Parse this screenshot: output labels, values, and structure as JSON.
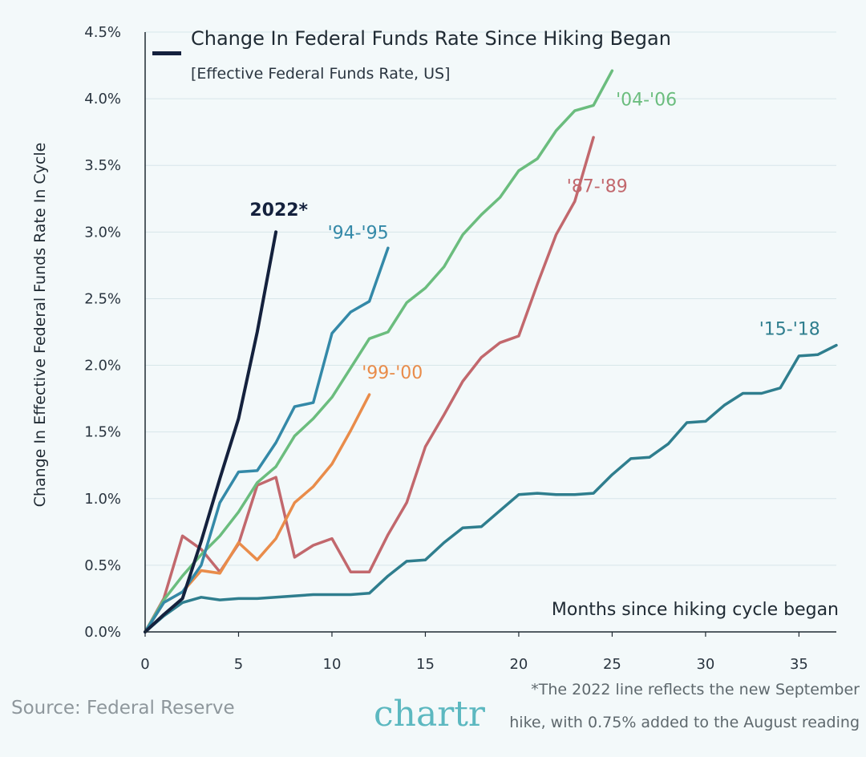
{
  "chart_data": {
    "type": "line",
    "title": "Change In Federal Funds Rate Since Hiking Began",
    "subtitle": "[Effective Federal Funds Rate, US]",
    "xlabel": "Months since hiking cycle began",
    "ylabel": "Change In Effective Federal Funds Rate In Cycle",
    "xlim": [
      0,
      37
    ],
    "ylim": [
      0,
      4.5
    ],
    "x_ticks": [
      "0",
      "5",
      "10",
      "15",
      "20",
      "25",
      "30",
      "35"
    ],
    "y_ticks": [
      "0.0%",
      "0.5%",
      "1.0%",
      "1.5%",
      "2.0%",
      "2.5%",
      "3.0%",
      "3.5%",
      "4.0%",
      "4.5%"
    ],
    "grid": "horizontal",
    "legend": "top-left",
    "series": [
      {
        "name": "2022*",
        "color": "#14213d",
        "x": [
          0,
          1,
          2,
          3,
          4,
          5,
          6,
          7
        ],
        "y": [
          0.0,
          0.13,
          0.25,
          0.68,
          1.15,
          1.6,
          2.25,
          3.0
        ]
      },
      {
        "name": "'94-'95",
        "color": "#3489a8",
        "x": [
          0,
          1,
          2,
          3,
          4,
          5,
          6,
          7,
          8,
          9,
          10,
          11,
          12,
          13
        ],
        "y": [
          0.0,
          0.22,
          0.3,
          0.5,
          0.97,
          1.2,
          1.21,
          1.42,
          1.69,
          1.72,
          2.24,
          2.4,
          2.48,
          2.88
        ]
      },
      {
        "name": "'04-'06",
        "color": "#6bbd7e",
        "x": [
          0,
          1,
          2,
          3,
          4,
          5,
          6,
          7,
          8,
          9,
          10,
          11,
          12,
          13,
          14,
          15,
          16,
          17,
          18,
          19,
          20,
          21,
          22,
          23,
          24,
          25
        ],
        "y": [
          0.0,
          0.24,
          0.42,
          0.58,
          0.72,
          0.9,
          1.12,
          1.24,
          1.47,
          1.6,
          1.76,
          1.98,
          2.2,
          2.25,
          2.47,
          2.58,
          2.74,
          2.98,
          3.13,
          3.26,
          3.46,
          3.55,
          3.76,
          3.91,
          3.95,
          4.21
        ]
      },
      {
        "name": "'87-'89",
        "color": "#c2686d",
        "x": [
          0,
          1,
          2,
          3,
          4,
          5,
          6,
          7,
          8,
          9,
          10,
          11,
          12,
          13,
          14,
          15,
          16,
          17,
          18,
          19,
          20,
          21,
          22,
          23,
          24
        ],
        "y": [
          0.0,
          0.25,
          0.72,
          0.62,
          0.45,
          0.66,
          1.1,
          1.16,
          0.56,
          0.65,
          0.7,
          0.45,
          0.45,
          0.73,
          0.97,
          1.39,
          1.63,
          1.88,
          2.06,
          2.17,
          2.22,
          2.61,
          2.98,
          3.23,
          3.71
        ]
      },
      {
        "name": "'99-'00",
        "color": "#e98c4a",
        "x": [
          0,
          1,
          2,
          3,
          4,
          5,
          6,
          7,
          8,
          9,
          10,
          11,
          12
        ],
        "y": [
          0.0,
          0.22,
          0.3,
          0.46,
          0.44,
          0.67,
          0.54,
          0.7,
          0.97,
          1.09,
          1.26,
          1.51,
          1.78
        ]
      },
      {
        "name": "'15-'18",
        "color": "#2f7e8e",
        "x": [
          0,
          1,
          2,
          3,
          4,
          5,
          6,
          7,
          8,
          9,
          10,
          11,
          12,
          13,
          14,
          15,
          16,
          17,
          18,
          19,
          20,
          21,
          22,
          23,
          24,
          25,
          26,
          27,
          28,
          29,
          30,
          31,
          32,
          33,
          34,
          35,
          36,
          37
        ],
        "y": [
          0.0,
          0.12,
          0.22,
          0.26,
          0.24,
          0.25,
          0.25,
          0.26,
          0.27,
          0.28,
          0.28,
          0.28,
          0.29,
          0.42,
          0.53,
          0.54,
          0.67,
          0.78,
          0.79,
          0.91,
          1.03,
          1.04,
          1.03,
          1.03,
          1.04,
          1.18,
          1.3,
          1.31,
          1.41,
          1.57,
          1.58,
          1.7,
          1.79,
          1.79,
          1.83,
          2.07,
          2.08,
          2.15
        ]
      }
    ]
  },
  "legend_marker_color": "#14213d",
  "source": "Source: Federal Reserve",
  "brand": "chartr",
  "footnote_line1": "*The 2022 line reflects the new September",
  "footnote_line2": "hike, with 0.75% added to the August reading"
}
